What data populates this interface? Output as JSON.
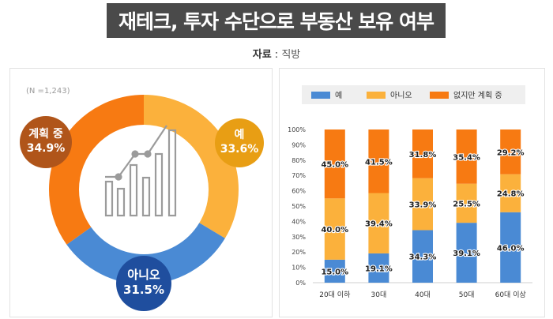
{
  "title": "재테크, 투자 수단으로 부동산 보유 여부",
  "source": {
    "label": "자료",
    "separator": " : ",
    "value": "직방"
  },
  "donut": {
    "n_label": "(N =1,243)",
    "segments": [
      {
        "name": "예",
        "value": "33.6%",
        "pct": 33.6,
        "color": "#FBB13C",
        "badge_color": "#E89E14"
      },
      {
        "name": "아니오",
        "value": "31.5%",
        "pct": 31.5,
        "color": "#4A8AD4",
        "badge_color": "#1F4E9E"
      },
      {
        "name": "계획 중",
        "value": "34.9%",
        "pct": 34.9,
        "color": "#F77A12",
        "badge_color": "#B0551A"
      }
    ]
  },
  "chart_data": {
    "type": "bar",
    "stacked": true,
    "categories": [
      "20대 이하",
      "30대",
      "40대",
      "50대",
      "60대 이상"
    ],
    "series": [
      {
        "name": "예",
        "color": "#4A8AD4",
        "values": [
          15.0,
          19.1,
          34.3,
          39.1,
          46.0
        ],
        "labels": [
          "15.0%",
          "19.1%",
          "34.3%",
          "39.1%",
          "46.0%"
        ]
      },
      {
        "name": "아니오",
        "color": "#FBB13C",
        "values": [
          40.0,
          39.4,
          33.9,
          25.5,
          24.8
        ],
        "labels": [
          "40.0%",
          "39.4%",
          "33.9%",
          "25.5%",
          "24.8%"
        ]
      },
      {
        "name": "없지만 계획 중",
        "color": "#F77A12",
        "values": [
          45.0,
          41.5,
          31.8,
          35.4,
          29.2
        ],
        "labels": [
          "45.0%",
          "41.5%",
          "31.8%",
          "35.4%",
          "29.2%"
        ]
      }
    ],
    "yticks": [
      "0%",
      "10%",
      "20%",
      "30%",
      "40%",
      "50%",
      "60%",
      "70%",
      "80%",
      "90%",
      "100%"
    ],
    "ylim": [
      0,
      100
    ],
    "legend": "top",
    "grid": false
  }
}
